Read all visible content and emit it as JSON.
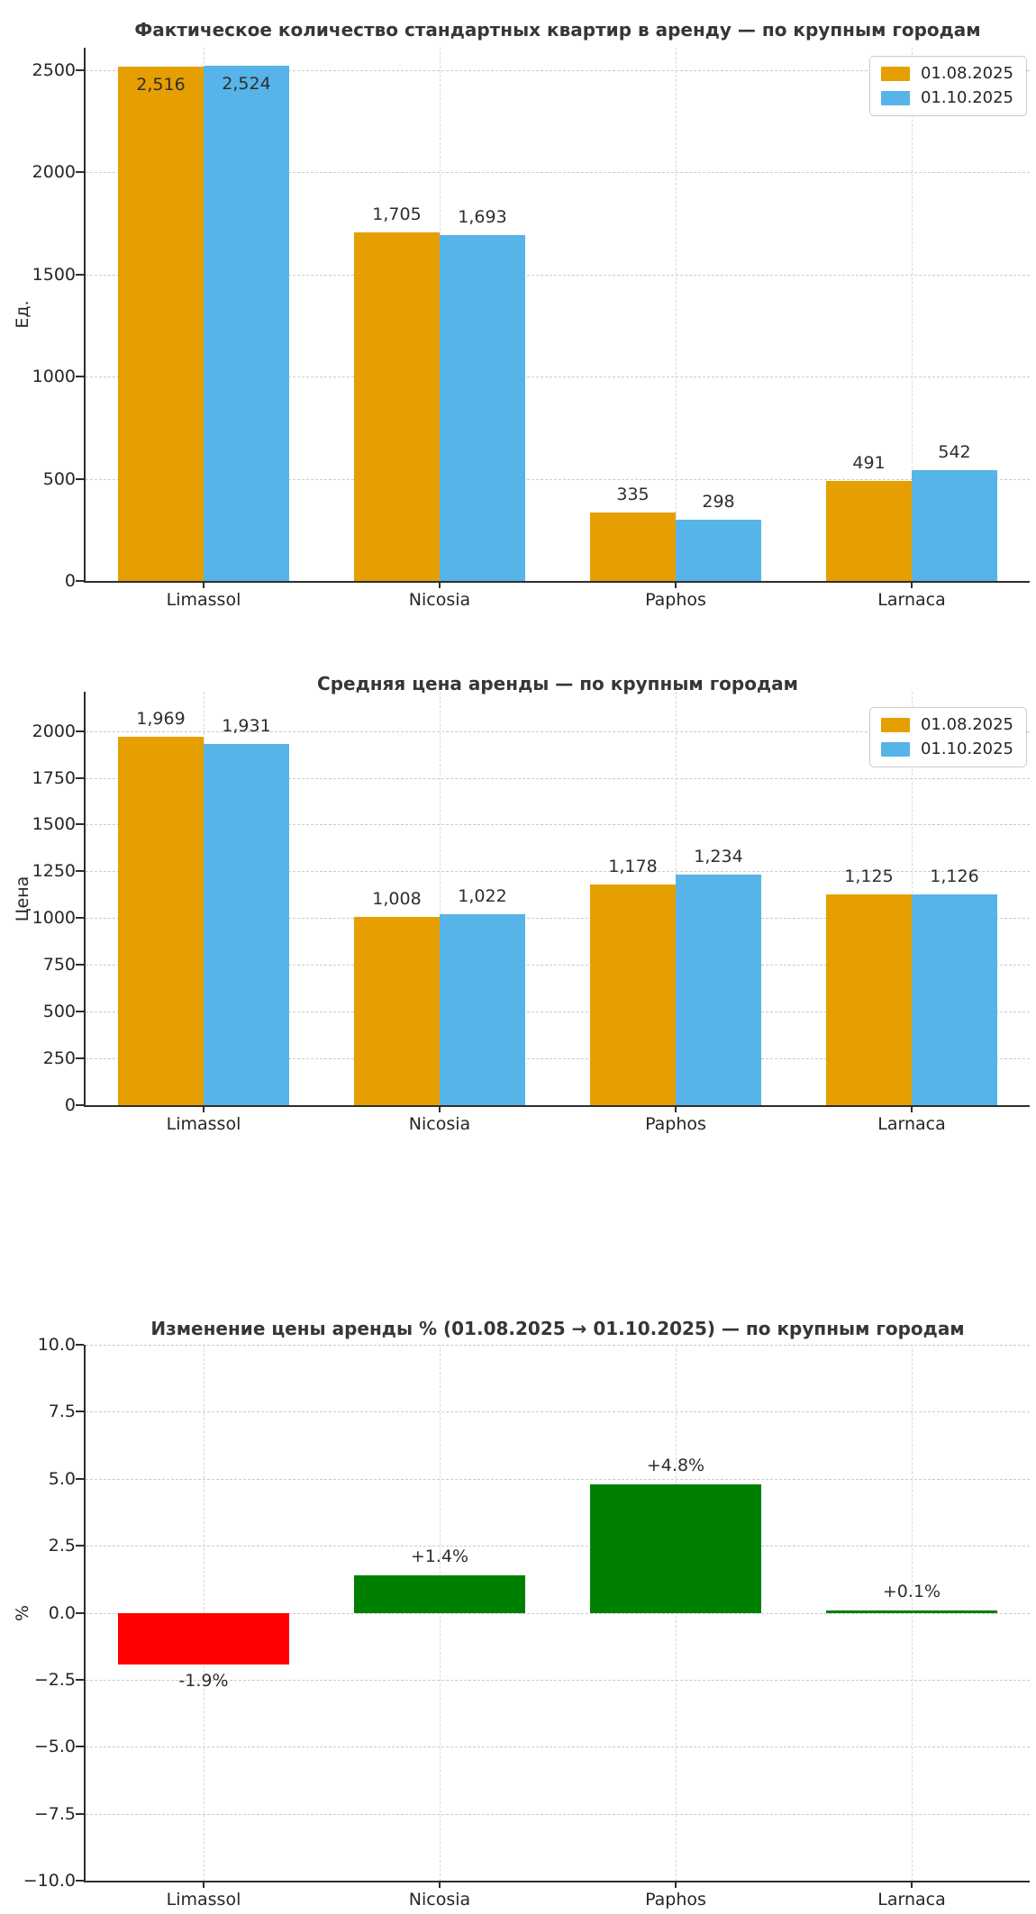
{
  "figure": {
    "background": "#ffffff"
  },
  "colors": {
    "series_aug": "#E69F00",
    "series_oct": "#56B4E9",
    "negative": "#FF0000",
    "positive": "#008000",
    "grid": "#cccccc",
    "spine": "#2e2e2e",
    "text": "#333333"
  },
  "legend": {
    "position": "upper right",
    "items": [
      {
        "label": "01.08.2025",
        "color": "#E69F00"
      },
      {
        "label": "01.10.2025",
        "color": "#56B4E9"
      }
    ]
  },
  "chart_data": [
    {
      "type": "bar",
      "title": "Фактическое количество стандартных квартир в аренду — по крупным городам",
      "ylabel": "Ед.",
      "xlabel": "",
      "categories": [
        "Limassol",
        "Nicosia",
        "Paphos",
        "Larnaca"
      ],
      "series": [
        {
          "name": "01.08.2025",
          "color": "#E69F00",
          "values": [
            2516,
            1705,
            335,
            491
          ],
          "labels": [
            "2,516",
            "1,705",
            "335",
            "491"
          ]
        },
        {
          "name": "01.10.2025",
          "color": "#56B4E9",
          "values": [
            2524,
            1693,
            298,
            542
          ],
          "labels": [
            "2,524",
            "1,693",
            "298",
            "542"
          ]
        }
      ],
      "ylim": [
        0,
        2610
      ],
      "yticks": [
        0,
        500,
        1000,
        1500,
        2000,
        2500
      ],
      "ytick_labels": [
        "0",
        "500",
        "1000",
        "1500",
        "2000",
        "2500"
      ],
      "grid": true,
      "legend": true,
      "labels_inside_categories": [
        0
      ]
    },
    {
      "type": "bar",
      "title": "Средняя цена аренды — по крупным городам",
      "ylabel": "Цена",
      "xlabel": "",
      "categories": [
        "Limassol",
        "Nicosia",
        "Paphos",
        "Larnaca"
      ],
      "series": [
        {
          "name": "01.08.2025",
          "color": "#E69F00",
          "values": [
            1969,
            1008,
            1178,
            1125
          ],
          "labels": [
            "1,969",
            "1,008",
            "1,178",
            "1,125"
          ]
        },
        {
          "name": "01.10.2025",
          "color": "#56B4E9",
          "values": [
            1931,
            1022,
            1234,
            1126
          ],
          "labels": [
            "1,931",
            "1,022",
            "1,234",
            "1,126"
          ]
        }
      ],
      "ylim": [
        0,
        2210
      ],
      "yticks": [
        0,
        250,
        500,
        750,
        1000,
        1250,
        1500,
        1750,
        2000
      ],
      "ytick_labels": [
        "0",
        "250",
        "500",
        "750",
        "1000",
        "1250",
        "1500",
        "1750",
        "2000"
      ],
      "grid": true,
      "legend": true,
      "labels_inside_categories": []
    },
    {
      "type": "bar",
      "title": "Изменение цены аренды % (01.08.2025 → 01.10.2025) — по крупным городам",
      "ylabel": "%",
      "xlabel": "",
      "categories": [
        "Limassol",
        "Nicosia",
        "Paphos",
        "Larnaca"
      ],
      "values": [
        -1.9,
        1.4,
        4.8,
        0.1
      ],
      "value_labels": [
        "-1.9%",
        "+1.4%",
        "+4.8%",
        "+0.1%"
      ],
      "bar_colors": [
        "#FF0000",
        "#008000",
        "#008000",
        "#008000"
      ],
      "ylim": [
        -10,
        10
      ],
      "yticks": [
        10.0,
        7.5,
        5.0,
        2.5,
        0.0,
        -2.5,
        -5.0,
        -7.5,
        -10.0
      ],
      "ytick_labels": [
        "10.0",
        "7.5",
        "5.0",
        "2.5",
        "0.0",
        "−2.5",
        "−5.0",
        "−7.5",
        "−10.0"
      ],
      "grid": true,
      "legend": false,
      "labels_inside_categories": []
    }
  ]
}
